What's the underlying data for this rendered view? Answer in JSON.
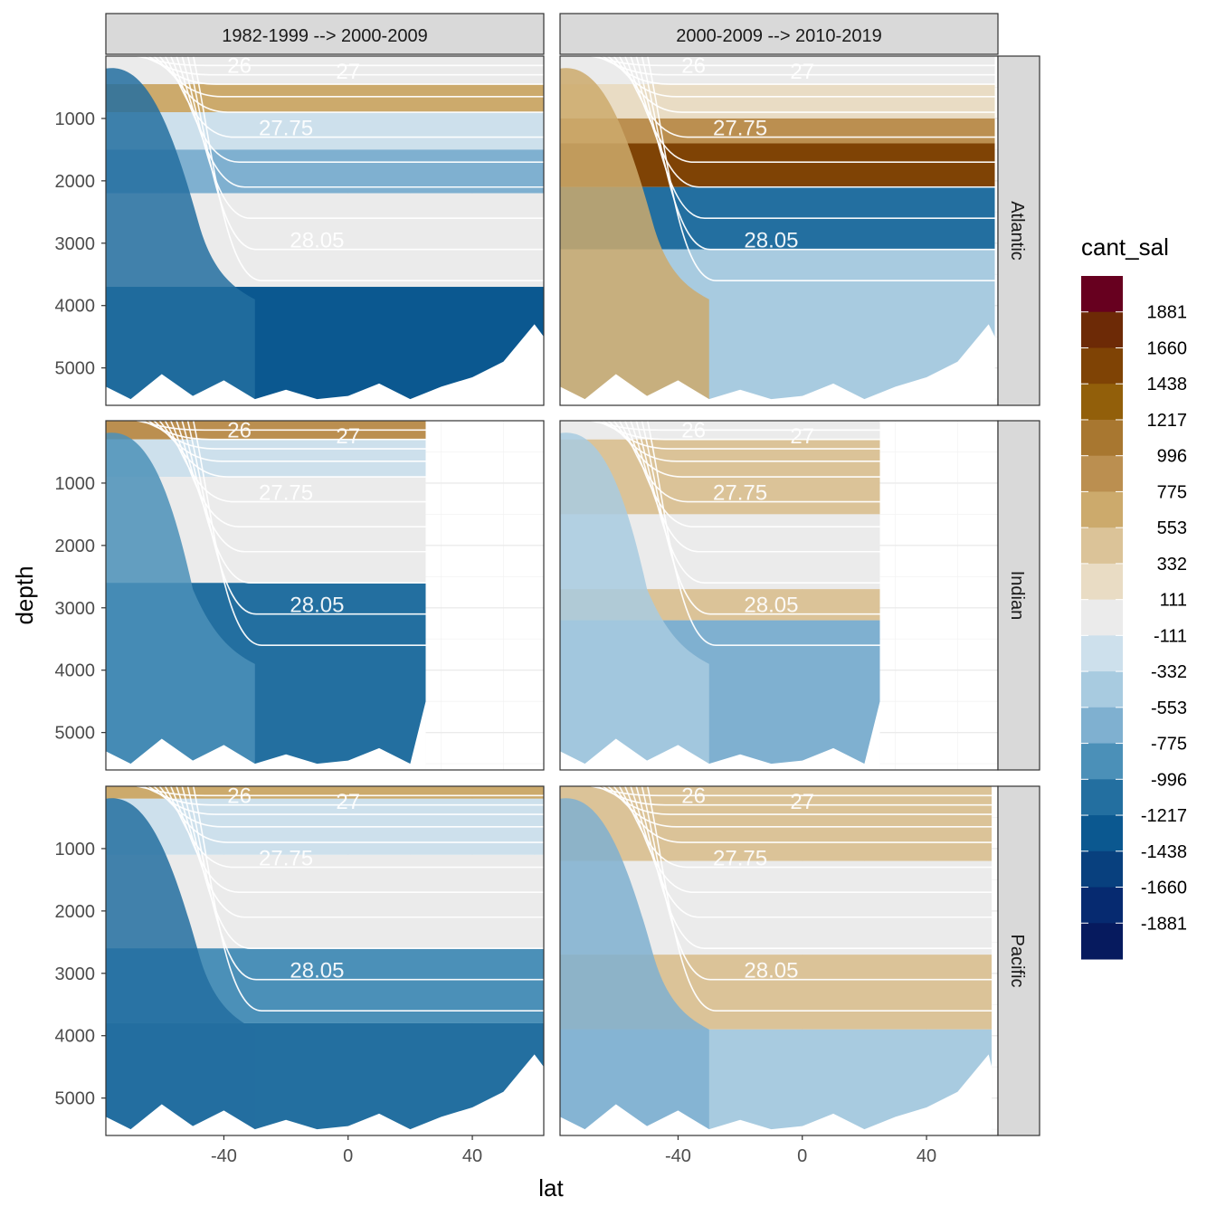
{
  "chart_data": {
    "type": "heatmap",
    "xlabel": "lat",
    "ylabel": "depth",
    "x_ticks": [
      -40,
      0,
      40
    ],
    "y_ticks": [
      1000,
      2000,
      3000,
      4000,
      5000
    ],
    "xlim": [
      -78,
      63
    ],
    "ylim": [
      5600,
      0
    ],
    "y_reversed": true,
    "grid": true,
    "columns": [
      "1982-1999 --> 2000-2009",
      "2000-2009 --> 2010-2019"
    ],
    "rows": [
      "Atlantic",
      "Indian",
      "Pacific"
    ],
    "legend": {
      "title": "cant_sal",
      "position": "right",
      "labels": [
        "1881",
        "1660",
        "1438",
        "1217",
        "996",
        "775",
        "553",
        "332",
        "111",
        "-111",
        "-332",
        "-553",
        "-775",
        "-996",
        "-1217",
        "-1438",
        "-1660",
        "-1881"
      ],
      "colors": [
        "#67001f",
        "#6d2a06",
        "#7f4305",
        "#925f0a",
        "#a87730",
        "#bb8f50",
        "#ccaa6c",
        "#dbc398",
        "#e9dcc4",
        "#ebebeb",
        "#cde0ec",
        "#a8cbe0",
        "#7fb0d0",
        "#4b90b8",
        "#236fa0",
        "#0b5890",
        "#08407e",
        "#062a70",
        "#061a5e"
      ]
    },
    "isopycnal_labels": [
      "26",
      "27",
      "27.75",
      "28.05"
    ],
    "panels": [
      {
        "column": "1982-1999 --> 2000-2009",
        "basin": "Atlantic",
        "layers": [
          {
            "from": 0,
            "to": 450,
            "value": 0
          },
          {
            "from": 450,
            "to": 900,
            "value": 700
          },
          {
            "from": 900,
            "to": 1500,
            "value": -200
          },
          {
            "from": 1500,
            "to": 2200,
            "value": -700
          },
          {
            "from": 2200,
            "to": 3700,
            "value": 0
          },
          {
            "from": 3700,
            "to": 5600,
            "value": -1300
          }
        ],
        "southern_value": -1200,
        "southern_lat": -48,
        "max_lat": 63
      },
      {
        "column": "2000-2009 --> 2010-2019",
        "basin": "Atlantic",
        "layers": [
          {
            "from": 0,
            "to": 450,
            "value": 0
          },
          {
            "from": 450,
            "to": 1000,
            "value": 300
          },
          {
            "from": 1000,
            "to": 1400,
            "value": 900
          },
          {
            "from": 1400,
            "to": 2100,
            "value": 1450
          },
          {
            "from": 2100,
            "to": 3100,
            "value": -1000
          },
          {
            "from": 3100,
            "to": 5600,
            "value": -500
          }
        ],
        "southern_value": 650,
        "southern_lat": -48,
        "max_lat": 62
      },
      {
        "column": "1982-1999 --> 2000-2009",
        "basin": "Indian",
        "layers": [
          {
            "from": 0,
            "to": 300,
            "value": 800
          },
          {
            "from": 300,
            "to": 900,
            "value": -200
          },
          {
            "from": 900,
            "to": 2600,
            "value": 0
          },
          {
            "from": 2600,
            "to": 5600,
            "value": -1100
          }
        ],
        "southern_value": -800,
        "southern_lat": -50,
        "max_lat": 25
      },
      {
        "column": "2000-2009 --> 2010-2019",
        "basin": "Indian",
        "layers": [
          {
            "from": 0,
            "to": 300,
            "value": 100
          },
          {
            "from": 300,
            "to": 1500,
            "value": 350
          },
          {
            "from": 1500,
            "to": 2700,
            "value": 0
          },
          {
            "from": 2700,
            "to": 3200,
            "value": 500
          },
          {
            "from": 3200,
            "to": 5600,
            "value": -650
          }
        ],
        "southern_value": -400,
        "southern_lat": -50,
        "max_lat": 25
      },
      {
        "column": "1982-1999 --> 2000-2009",
        "basin": "Pacific",
        "layers": [
          {
            "from": 0,
            "to": 200,
            "value": 700
          },
          {
            "from": 200,
            "to": 1100,
            "value": -250
          },
          {
            "from": 1100,
            "to": 2600,
            "value": 0
          },
          {
            "from": 2600,
            "to": 3800,
            "value": -800
          },
          {
            "from": 3800,
            "to": 5600,
            "value": -1150
          }
        ],
        "southern_value": -1000,
        "southern_lat": -48,
        "max_lat": 63
      },
      {
        "column": "2000-2009 --> 2010-2019",
        "basin": "Pacific",
        "layers": [
          {
            "from": 0,
            "to": 1200,
            "value": 350
          },
          {
            "from": 1200,
            "to": 2700,
            "value": 0
          },
          {
            "from": 2700,
            "to": 3900,
            "value": 550
          },
          {
            "from": 3900,
            "to": 5600,
            "value": -400
          }
        ],
        "southern_value": -700,
        "southern_lat": -48,
        "max_lat": 61
      }
    ]
  }
}
